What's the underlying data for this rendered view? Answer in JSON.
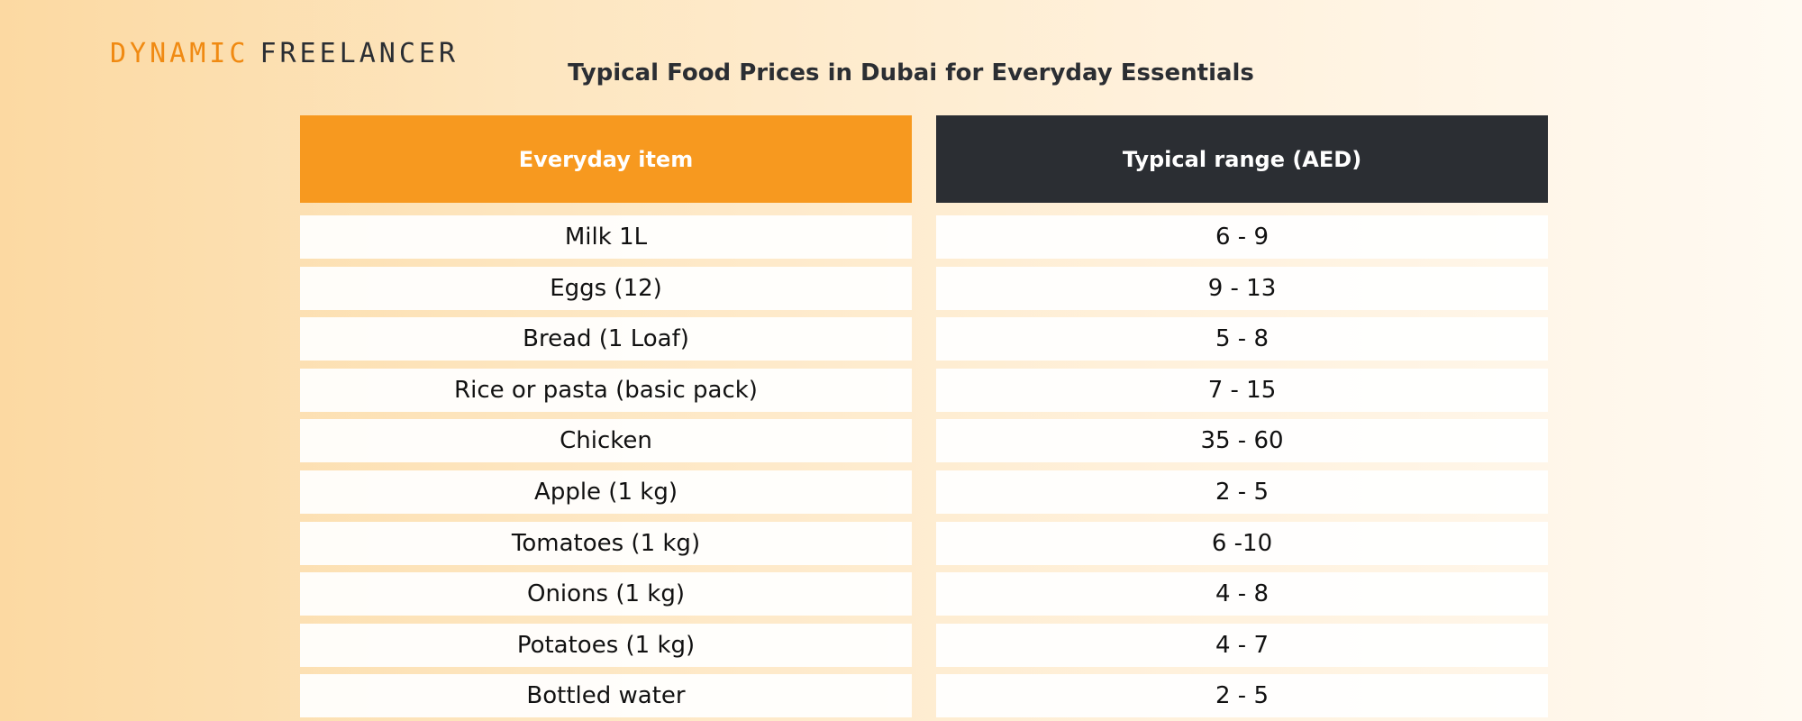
{
  "logo": {
    "part1": "DYNAMIC",
    "part2": "FREELANCER"
  },
  "title": "Typical Food Prices in Dubai for Everyday Essentials",
  "table": {
    "columns": [
      "Everyday item",
      "Typical range (AED)"
    ],
    "rows": [
      [
        "Milk 1L",
        "6 - 9"
      ],
      [
        "Eggs (12)",
        "9 - 13"
      ],
      [
        "Bread (1 Loaf)",
        "5 - 8"
      ],
      [
        "Rice or pasta (basic pack)",
        "7 - 15"
      ],
      [
        "Chicken",
        "35 - 60"
      ],
      [
        "Apple (1 kg)",
        "2 - 5"
      ],
      [
        "Tomatoes (1 kg)",
        "6 -10"
      ],
      [
        "Onions (1 kg)",
        "4 - 8"
      ],
      [
        "Potatoes (1 kg)",
        "4 - 7"
      ],
      [
        "Bottled water",
        "2 - 5"
      ]
    ]
  }
}
